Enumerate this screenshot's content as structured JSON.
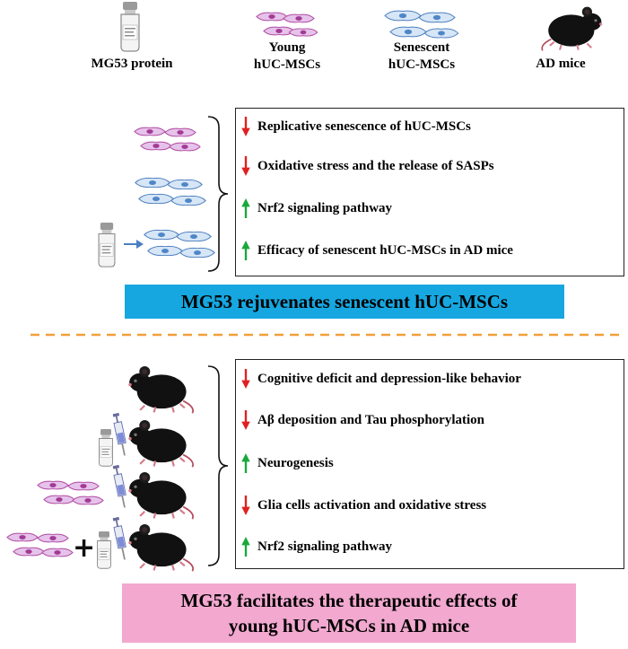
{
  "legend": {
    "items": [
      {
        "icon": "vial-icon",
        "label": "MG53 protein"
      },
      {
        "icon": "young-cells-icon",
        "label_line1": "Young",
        "label_line2": "hUC-MSCs"
      },
      {
        "icon": "senescent-cells-icon",
        "label_line1": "Senescent",
        "label_line2": "hUC-MSCs"
      },
      {
        "icon": "mouse-icon",
        "label": "AD mice"
      }
    ]
  },
  "section1": {
    "effects": [
      {
        "direction": "down",
        "text": "Replicative senescence of hUC-MSCs"
      },
      {
        "direction": "down",
        "text": "Oxidative stress and the release of SASPs"
      },
      {
        "direction": "up",
        "text": "Nrf2 signaling pathway"
      },
      {
        "direction": "up",
        "text": "Efficacy of senescent hUC-MSCs in AD mice"
      }
    ],
    "banner": "MG53 rejuvenates senescent hUC-MSCs"
  },
  "section2": {
    "effects": [
      {
        "direction": "down",
        "text": "Cognitive deficit and depression-like behavior"
      },
      {
        "direction": "down",
        "text": "Aβ deposition and Tau phosphorylation"
      },
      {
        "direction": "up",
        "text": "Neurogenesis"
      },
      {
        "direction": "down",
        "text": "Glia cells activation and oxidative stress"
      },
      {
        "direction": "up",
        "text": "Nrf2 signaling pathway"
      }
    ],
    "banner_line1": "MG53 facilitates the therapeutic effects of",
    "banner_line2": "young hUC-MSCs in AD mice",
    "plus_symbol": "+"
  },
  "colors": {
    "down_arrow": "#e02020",
    "up_arrow": "#1aa83a",
    "young_cell": "#c84fb0",
    "senescent_cell": "#5b8fc9",
    "divider": "#f2a03a",
    "blue_banner": "#16a7e0",
    "pink_banner": "#f2a8cf"
  }
}
